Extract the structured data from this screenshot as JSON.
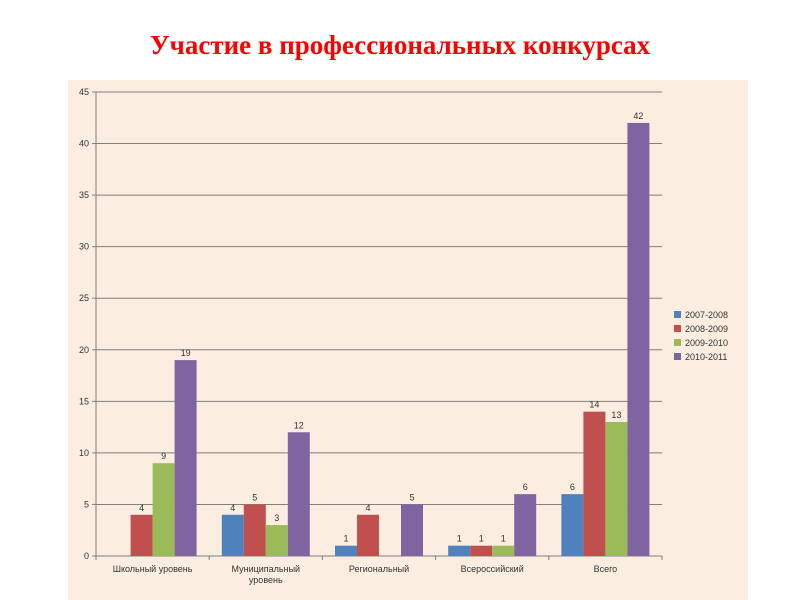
{
  "page": {
    "title": "Участие в профессиональных конкурсах"
  },
  "chart_data": {
    "type": "bar",
    "categories": [
      [
        "Школьный уровень"
      ],
      [
        "Муниципальный",
        "уровень"
      ],
      [
        "Региональный"
      ],
      [
        "Всероссийский"
      ],
      [
        "Всего"
      ]
    ],
    "series": [
      {
        "name": "2007-2008",
        "color": "#4f81bd",
        "values": [
          null,
          4,
          1,
          1,
          6
        ]
      },
      {
        "name": "2008-2009",
        "color": "#c0504d",
        "values": [
          4,
          5,
          4,
          1,
          14
        ]
      },
      {
        "name": "2009-2010",
        "color": "#9bbb59",
        "values": [
          9,
          3,
          null,
          1,
          13
        ]
      },
      {
        "name": "2010-2011",
        "color": "#8064a2",
        "values": [
          19,
          12,
          5,
          6,
          42
        ]
      }
    ],
    "ylim": [
      0,
      45
    ],
    "yticks": [
      0,
      5,
      10,
      15,
      20,
      25,
      30,
      35,
      40,
      45
    ],
    "grid": true,
    "legend_position": "right",
    "data_labels": true
  }
}
